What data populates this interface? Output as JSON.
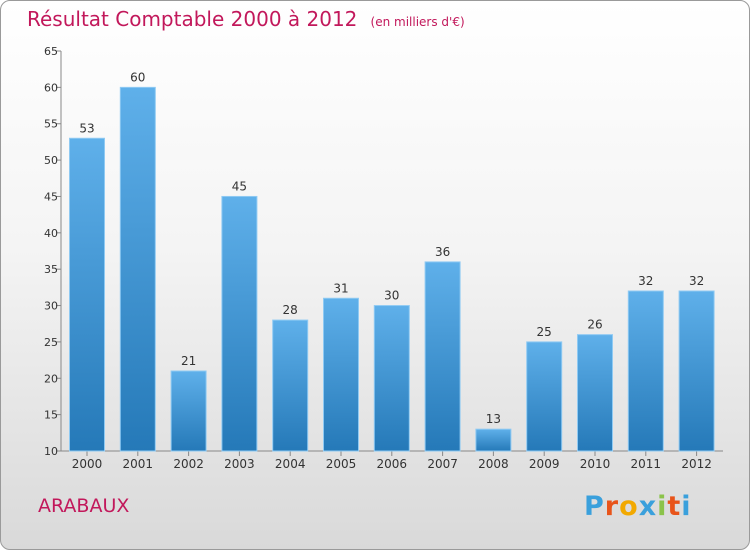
{
  "title": "Résultat Comptable 2000 à 2012",
  "subtitle": "(en milliers d'€)",
  "commune": "ARABAUX",
  "logo": {
    "letters": [
      "P",
      "r",
      "o",
      "x",
      "i",
      "t",
      "i"
    ],
    "colors": [
      "#3aa0dc",
      "#e8541a",
      "#f2a900",
      "#3aa0dc",
      "#8bc34a",
      "#e8541a",
      "#3aa0dc"
    ]
  },
  "colors": {
    "bar_top": "#5fb0ea",
    "bar_bottom": "#2579b8",
    "title": "#c2185b"
  },
  "chart_data": {
    "type": "bar",
    "title": "Résultat Comptable 2000 à 2012",
    "subtitle": "(en milliers d'€)",
    "xlabel": "",
    "ylabel": "",
    "categories": [
      "2000",
      "2001",
      "2002",
      "2003",
      "2004",
      "2005",
      "2006",
      "2007",
      "2008",
      "2009",
      "2010",
      "2011",
      "2012"
    ],
    "values": [
      53,
      60,
      21,
      45,
      28,
      31,
      30,
      36,
      13,
      25,
      26,
      32,
      32
    ],
    "ylim": [
      10,
      65
    ],
    "yticks": [
      10,
      15,
      20,
      25,
      30,
      35,
      40,
      45,
      50,
      55,
      60,
      65
    ],
    "grid": false
  }
}
